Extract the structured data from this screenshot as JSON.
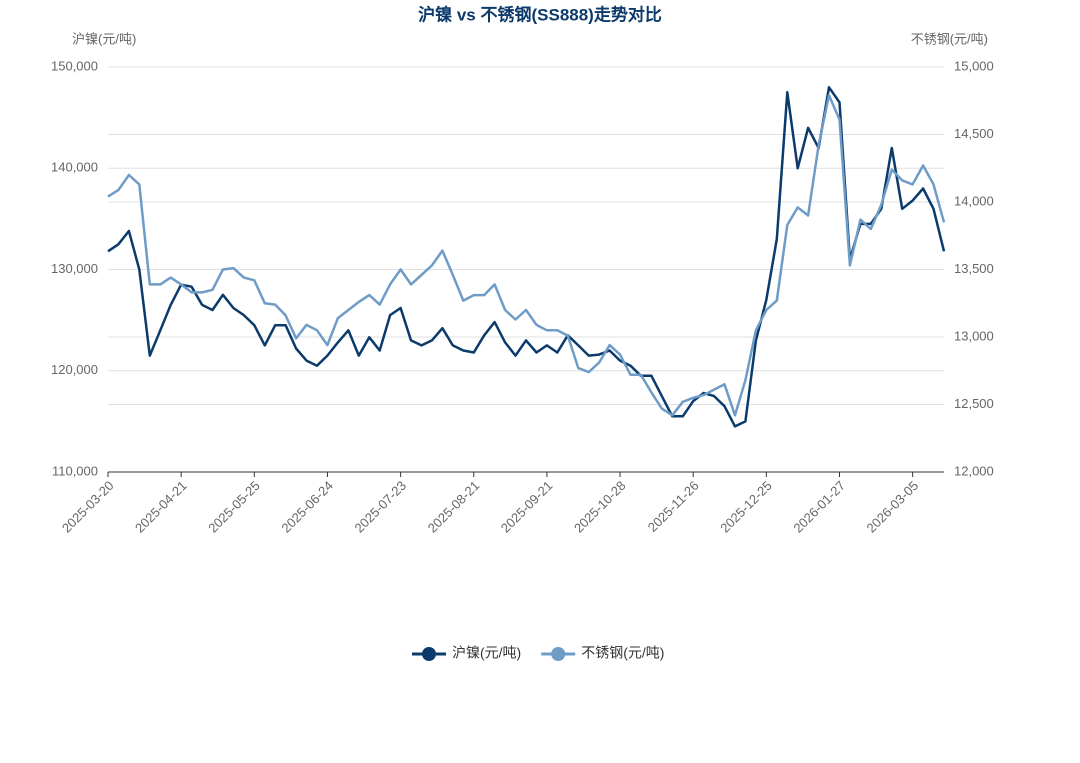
{
  "chart_data": {
    "type": "line",
    "title": "沪镍 vs 不锈钢(SS888)走势对比",
    "y_label": "沪镍(元/吨)",
    "y2_label": "不锈钢(元/吨)",
    "categories": [
      "2025-03-20",
      null,
      null,
      null,
      null,
      null,
      null,
      "2025-04-21",
      null,
      null,
      null,
      null,
      null,
      null,
      "2025-05-25",
      null,
      null,
      null,
      null,
      null,
      null,
      "2025-06-24",
      null,
      null,
      null,
      null,
      null,
      null,
      "2025-07-23",
      null,
      null,
      null,
      null,
      null,
      null,
      "2025-08-21",
      null,
      null,
      null,
      null,
      null,
      null,
      "2025-09-21",
      null,
      null,
      null,
      null,
      null,
      null,
      "2025-10-28",
      null,
      null,
      null,
      null,
      null,
      null,
      "2025-11-26",
      null,
      null,
      null,
      null,
      null,
      null,
      "2025-12-25",
      null,
      null,
      null,
      null,
      null,
      null,
      "2026-01-27",
      null,
      null,
      null,
      null,
      null,
      null,
      "2026-03-05",
      null,
      null,
      null
    ],
    "series": [
      {
        "name": "沪镍(元/吨)",
        "color": "#0b3a6b",
        "axis": "y",
        "values": [
          131800,
          132500,
          133800,
          130000,
          121500,
          124000,
          126500,
          128500,
          128300,
          126500,
          126000,
          127500,
          126200,
          125500,
          124500,
          122500,
          124500,
          124500,
          122200,
          121000,
          120500,
          121500,
          122800,
          124000,
          121500,
          123300,
          122000,
          125500,
          126200,
          123000,
          122500,
          123000,
          124200,
          122500,
          122000,
          121800,
          123500,
          124800,
          122800,
          121500,
          123000,
          121800,
          122500,
          121800,
          123500,
          122500,
          121500,
          121600,
          122000,
          121000,
          120500,
          119500,
          119500,
          117500,
          115500,
          115500,
          117000,
          117800,
          117500,
          116500,
          114500,
          115000,
          123000,
          127000,
          133000,
          147500,
          140000,
          144000,
          142000,
          148000,
          146500,
          131000,
          134500,
          134500,
          136000,
          142000,
          136000,
          136800,
          138000,
          136000,
          131800
        ]
      },
      {
        "name": "不锈钢(元/吨)",
        "color": "#6f9cc6",
        "axis": "y2",
        "values": [
          14040,
          14090,
          14200,
          14130,
          13390,
          13390,
          13440,
          13390,
          13330,
          13330,
          13350,
          13500,
          13510,
          13440,
          13420,
          13250,
          13240,
          13160,
          12990,
          13090,
          13050,
          12940,
          13140,
          13200,
          13260,
          13310,
          13240,
          13390,
          13500,
          13390,
          13460,
          13530,
          13640,
          13460,
          13270,
          13310,
          13310,
          13390,
          13200,
          13130,
          13200,
          13090,
          13050,
          13050,
          13010,
          12770,
          12740,
          12810,
          12940,
          12870,
          12720,
          12720,
          12590,
          12470,
          12420,
          12520,
          12550,
          12570,
          12610,
          12650,
          12420,
          12680,
          13050,
          13200,
          13270,
          13830,
          13960,
          13900,
          14420,
          14790,
          14610,
          13530,
          13870,
          13800,
          13980,
          14240,
          14160,
          14130,
          14270,
          14130,
          13850
        ]
      }
    ],
    "ylim": [
      110000,
      150000
    ],
    "yticks": [
      {
        "value": 110000,
        "label": "110,000"
      },
      {
        "value": 120000,
        "label": "120,000"
      },
      {
        "value": 130000,
        "label": "130,000"
      },
      {
        "value": 140000,
        "label": "140,000"
      },
      {
        "value": 150000,
        "label": "150,000"
      }
    ],
    "y2lim": [
      12000,
      15000
    ],
    "y2ticks": [
      {
        "value": 12000,
        "label": "12,000"
      },
      {
        "value": 12500,
        "label": "12,500"
      },
      {
        "value": 13000,
        "label": "13,000"
      },
      {
        "value": 13500,
        "label": "13,500"
      },
      {
        "value": 14000,
        "label": "14,000"
      },
      {
        "value": 14500,
        "label": "14,500"
      },
      {
        "value": 15000,
        "label": "15,000"
      }
    ],
    "grid": true,
    "legend": "bottom"
  }
}
